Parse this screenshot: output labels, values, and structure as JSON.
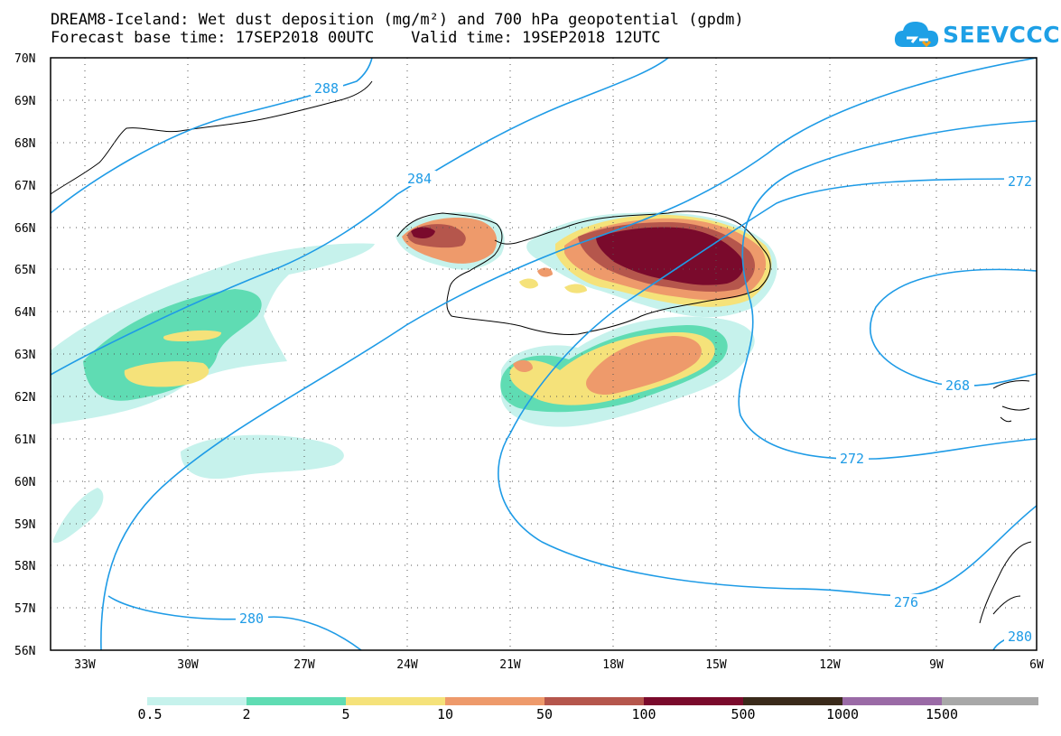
{
  "title_line1": "DREAM8-Iceland: Wet dust deposition (mg/m²) and 700 hPa geopotential (gpdm)",
  "title_line2": "Forecast base time: 17SEP2018 00UTC    Valid time: 19SEP2018 12UTC",
  "logo": {
    "text": "SEEVCCC",
    "icon": "cloud-icon",
    "color": "#1ea0e6"
  },
  "lat_labels": [
    "70N",
    "69N",
    "68N",
    "67N",
    "66N",
    "65N",
    "64N",
    "63N",
    "62N",
    "61N",
    "60N",
    "59N",
    "58N",
    "57N",
    "56N"
  ],
  "lon_labels": [
    "33W",
    "30W",
    "27W",
    "24W",
    "21W",
    "18W",
    "15W",
    "12W",
    "9W",
    "6W"
  ],
  "contours": {
    "color": "#1e9be6",
    "labels": [
      "288",
      "284",
      "280",
      "276",
      "272",
      "272",
      "268",
      "280"
    ]
  },
  "legend": {
    "colors": [
      "#c6f2ec",
      "#5fdcb3",
      "#f5e27a",
      "#ee9a6b",
      "#b5564c",
      "#7a0a2c",
      "#3a2a1a",
      "#9a6aa6",
      "#a8a8a8"
    ],
    "labels": [
      "0.5",
      "2",
      "5",
      "10",
      "50",
      "100",
      "500",
      "1000",
      "1500"
    ]
  }
}
